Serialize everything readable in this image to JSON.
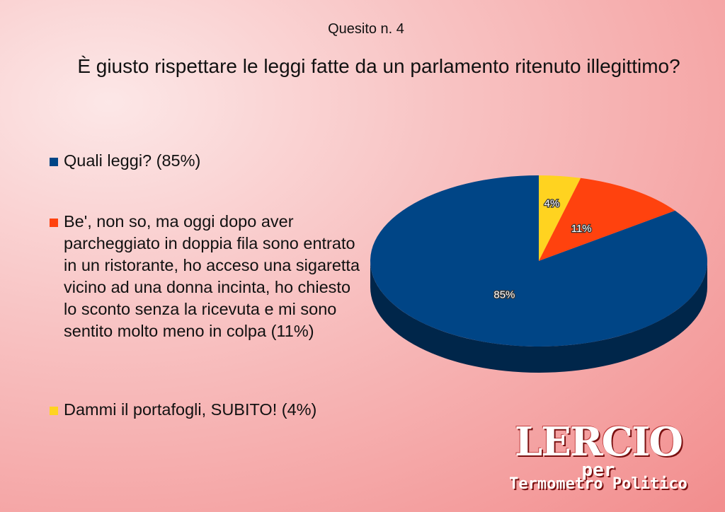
{
  "header": {
    "subtitle": "Quesito n. 4",
    "question": "È giusto rispettare le leggi fatte da un parlamento ritenuto illegittimo?"
  },
  "legend": {
    "items": [
      {
        "label": "Quali leggi? (85%)",
        "color": "#004586"
      },
      {
        "label": "Be', non so, ma oggi dopo aver parcheggiato in doppia fila sono entrato in un ristorante, ho acceso una sigaretta vicino ad una donna incinta, ho chiesto lo sconto senza la ricevuta e mi sono sentito molto meno in colpa (11%)",
        "color": "#ff420e"
      },
      {
        "label": "Dammi il portafogli, SUBITO! (4%)",
        "color": "#ffd320"
      }
    ]
  },
  "chart_data": {
    "type": "pie",
    "style": "3d",
    "title": "Quesito n. 4",
    "subtitle": "È giusto rispettare le leggi fatte da un parlamento ritenuto illegittimo?",
    "slices": [
      {
        "name": "Quali leggi?",
        "value": 85,
        "label": "85%",
        "color": "#004586"
      },
      {
        "name": "Be', non so, ma oggi dopo aver parcheggiato in doppia fila sono entrato in un ristorante, ho acceso una sigaretta vicino ad una donna incinta, ho chiesto lo sconto senza la ricevuta e mi sono sentito molto meno in colpa",
        "value": 11,
        "label": "11%",
        "color": "#ff420e"
      },
      {
        "name": "Dammi il portafogli, SUBITO!",
        "value": 4,
        "label": "4%",
        "color": "#ffd320"
      }
    ],
    "legend_position": "left"
  },
  "branding": {
    "logo_text": "LERCIO",
    "per_text": "per",
    "subtitle_text": "Termometro Politico"
  }
}
